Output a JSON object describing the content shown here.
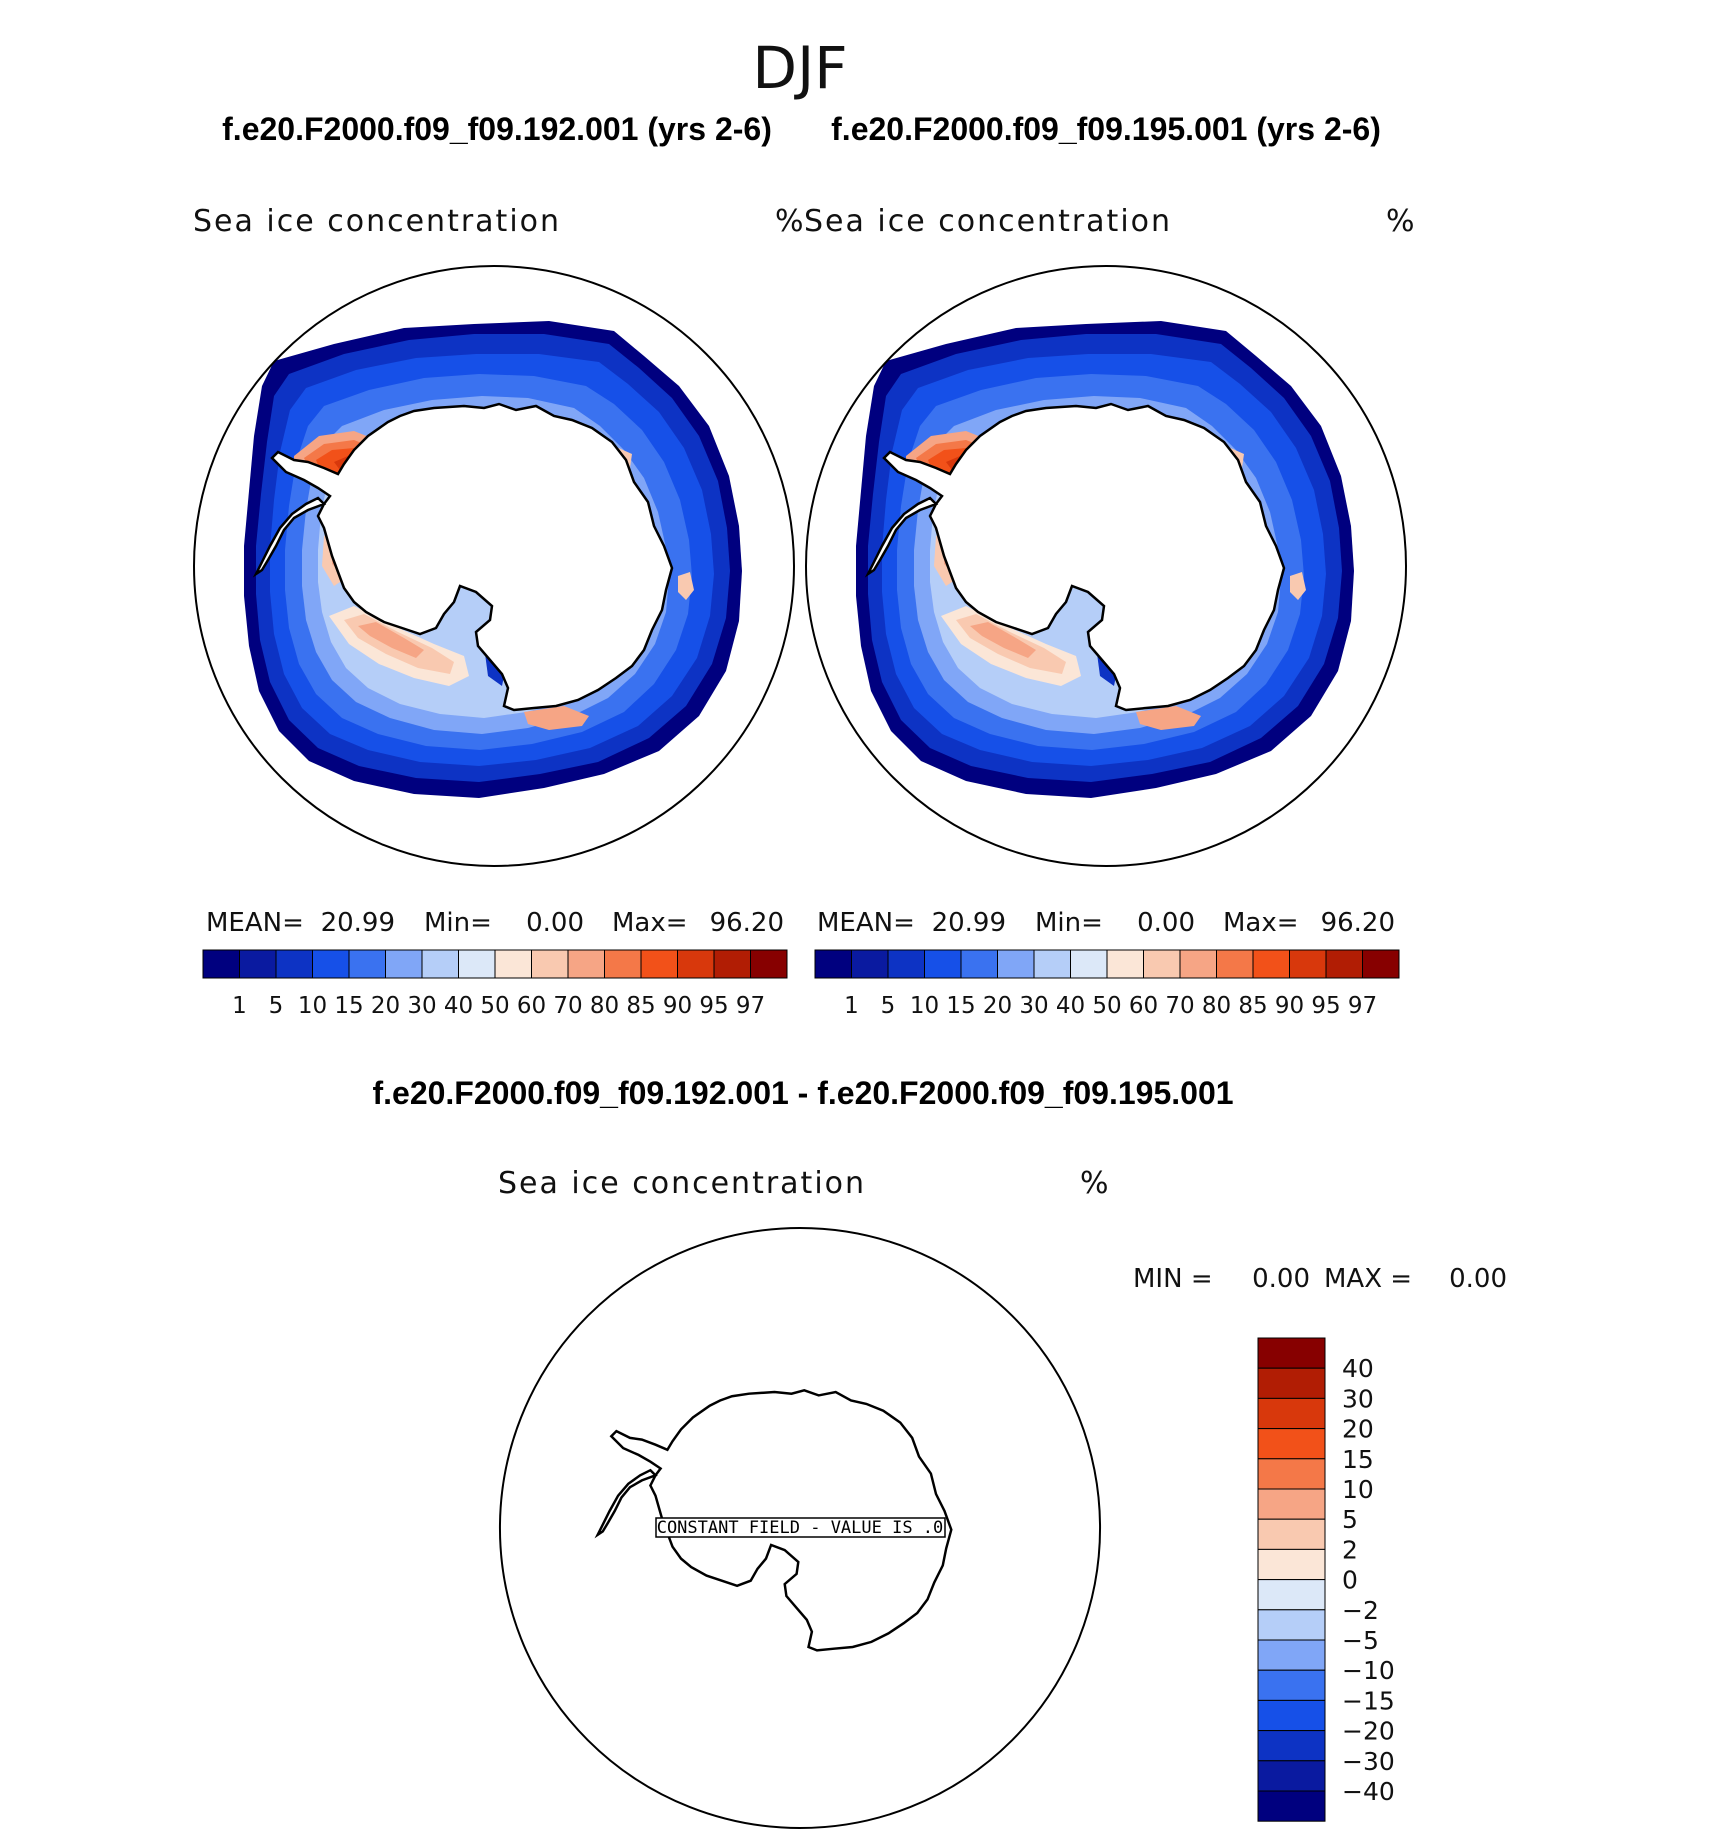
{
  "figure": {
    "season": "DJF",
    "panel1": {
      "case": "f.e20.F2000.f09_f09.192.001 (yrs 2-6)",
      "variable": "Sea ice concentration",
      "units": "%",
      "mean_label": "MEAN=",
      "mean_value": "20.99",
      "min_label": "Min=",
      "min_value": "0.00",
      "max_label": "Max=",
      "max_value": "96.20"
    },
    "panel2": {
      "case": "f.e20.F2000.f09_f09.195.001 (yrs 2-6)",
      "variable": "Sea ice concentration",
      "units": "%",
      "mean_label": "MEAN=",
      "mean_value": "20.99",
      "min_label": "Min=",
      "min_value": "0.00",
      "max_label": "Max=",
      "max_value": "96.20"
    },
    "panel3": {
      "case": "f.e20.F2000.f09_f09.192.001 - f.e20.F2000.f09_f09.195.001",
      "variable": "Sea ice concentration",
      "units": "%",
      "min_label": "MIN =",
      "min_value": "0.00",
      "max_label": "MAX =",
      "max_value": "0.00",
      "constant_field": "CONSTANT FIELD - VALUE IS .0"
    },
    "colorbar_levels": [
      "1",
      "5",
      "10",
      "15",
      "20",
      "30",
      "40",
      "50",
      "60",
      "70",
      "80",
      "85",
      "90",
      "95",
      "97"
    ],
    "colorbar_colors": [
      "#00007f",
      "#0a1aa0",
      "#0d33c4",
      "#1650e8",
      "#3a72f0",
      "#80a6f7",
      "#b5cef8",
      "#dce8f8",
      "#fbe6d7",
      "#f9c9b0",
      "#f6a585",
      "#f47848",
      "#f25119",
      "#d8380c",
      "#b11d04",
      "#870000"
    ],
    "diff_levels": [
      "40",
      "30",
      "20",
      "15",
      "10",
      "5",
      "2",
      "0",
      "−2",
      "−5",
      "−10",
      "−15",
      "−20",
      "−30",
      "−40"
    ],
    "diff_colors": [
      "#870000",
      "#b11d04",
      "#d8380c",
      "#f25119",
      "#f47848",
      "#f6a585",
      "#f9c9b0",
      "#fbe6d7",
      "#dce8f8",
      "#b5cef8",
      "#80a6f7",
      "#3a72f0",
      "#1650e8",
      "#0d33c4",
      "#0a1aa0",
      "#00007f"
    ]
  }
}
